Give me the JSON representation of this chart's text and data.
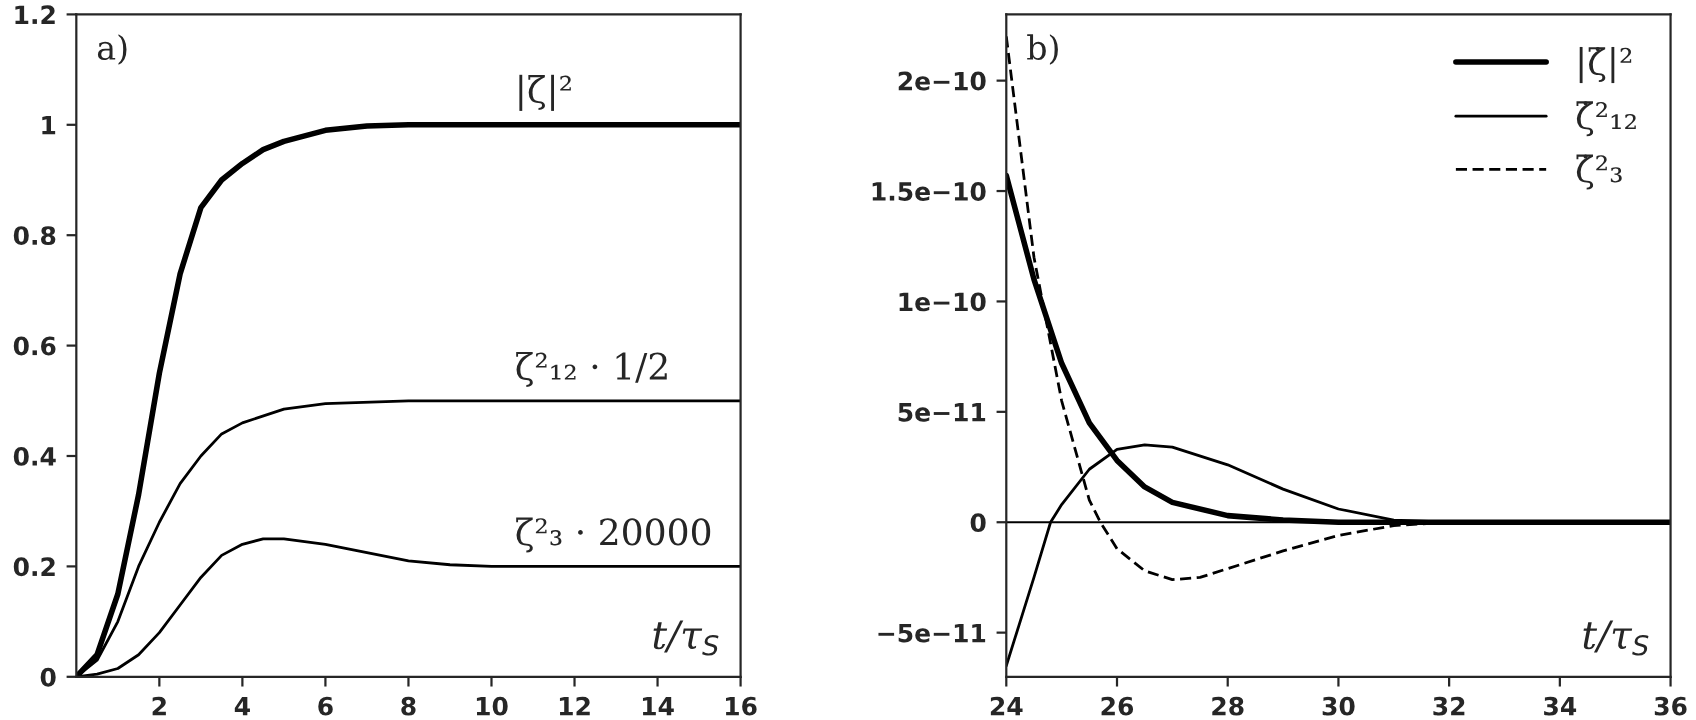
{
  "chart_data": [
    {
      "type": "line",
      "title": "a)",
      "xlabel": "t/τ$_{S}$",
      "xlim": [
        0,
        16
      ],
      "ylim": [
        0,
        1.2
      ],
      "xticks": [
        2,
        4,
        6,
        8,
        10,
        12,
        14,
        16
      ],
      "yticks": [
        0,
        0.2,
        0.4,
        0.6,
        0.8,
        1,
        1.2
      ],
      "grid": false,
      "legend": false,
      "line_style": "solid",
      "series": [
        {
          "name": "|ζ|²",
          "color": "#000000",
          "x": [
            0,
            0.5,
            1,
            1.5,
            2,
            2.5,
            3,
            3.5,
            4,
            4.5,
            5,
            6,
            7,
            8,
            16
          ],
          "values": [
            0,
            0.04,
            0.15,
            0.33,
            0.55,
            0.73,
            0.85,
            0.9,
            0.93,
            0.955,
            0.97,
            0.99,
            0.998,
            1,
            1
          ]
        },
        {
          "name": "ζ²₁₂ · 1/2",
          "color": "#000000",
          "x": [
            0,
            0.5,
            1,
            1.5,
            2,
            2.5,
            3,
            3.5,
            4,
            5,
            6,
            8,
            16
          ],
          "values": [
            0,
            0.03,
            0.1,
            0.2,
            0.28,
            0.35,
            0.4,
            0.44,
            0.46,
            0.485,
            0.495,
            0.5,
            0.5
          ]
        },
        {
          "name": "ζ²₃ · 20000",
          "color": "#000000",
          "x": [
            0,
            0.5,
            1,
            1.5,
            2,
            2.5,
            3,
            3.5,
            4,
            4.5,
            5,
            6,
            7,
            8,
            9,
            10,
            12,
            16
          ],
          "values": [
            0,
            0.005,
            0.015,
            0.04,
            0.08,
            0.13,
            0.18,
            0.22,
            0.24,
            0.25,
            0.25,
            0.24,
            0.225,
            0.21,
            0.203,
            0.2,
            0.2,
            0.2
          ]
        }
      ]
    },
    {
      "type": "line",
      "title": "b)",
      "xlabel": "t/τ$_{S}$",
      "xlim": [
        24,
        36
      ],
      "ylim": [
        -7e-11,
        2.3e-10
      ],
      "xticks": [
        24,
        26,
        28,
        30,
        32,
        34,
        36
      ],
      "yticks": [
        {
          "value": -5e-11,
          "label": "−5e−11"
        },
        0,
        {
          "value": 5e-11,
          "label": "5e−11"
        },
        {
          "value": 1e-10,
          "label": "1e−10"
        },
        {
          "value": 1.5e-10,
          "label": "1.5e−10"
        },
        {
          "value": 2e-10,
          "label": "2e−10"
        }
      ],
      "grid": false,
      "legend": "top right",
      "ref_lines": [
        {
          "axis": "y",
          "value": 0,
          "color": "#000000",
          "line_style": "solid"
        }
      ],
      "series": [
        {
          "name": "|ζ̇|²",
          "color": "#000000",
          "line_style": "solid",
          "x": [
            24,
            24.5,
            25,
            25.5,
            26,
            26.5,
            27,
            28,
            29,
            30,
            36
          ],
          "values": [
            1.57e-10,
            1.1e-10,
            7.2e-11,
            4.5e-11,
            2.8e-11,
            1.6e-11,
            9e-12,
            3e-12,
            1e-12,
            0,
            0
          ]
        },
        {
          "name": "ζ̇²₁₂",
          "color": "#000000",
          "line_style": "solid",
          "x": [
            24,
            24.5,
            24.8,
            25,
            25.5,
            26,
            26.5,
            27,
            28,
            29,
            30,
            31,
            32,
            36
          ],
          "values": [
            -6.5e-11,
            -2.5e-11,
            0,
            8e-12,
            2.4e-11,
            3.3e-11,
            3.5e-11,
            3.4e-11,
            2.6e-11,
            1.5e-11,
            6e-12,
            1e-12,
            0,
            0
          ]
        },
        {
          "name": "ζ̇²₃",
          "color": "#000000",
          "line_style": "dashed",
          "x": [
            24,
            24.5,
            25,
            25.5,
            25.7,
            26,
            26.5,
            27,
            27.5,
            28,
            29,
            30,
            31,
            32,
            36
          ],
          "values": [
            2.2e-10,
            1.2e-10,
            5.5e-11,
            1e-11,
            0,
            -1.2e-11,
            -2.2e-11,
            -2.6e-11,
            -2.5e-11,
            -2.1e-11,
            -1.3e-11,
            -6e-12,
            -1.5e-12,
            0,
            0
          ]
        }
      ]
    }
  ]
}
